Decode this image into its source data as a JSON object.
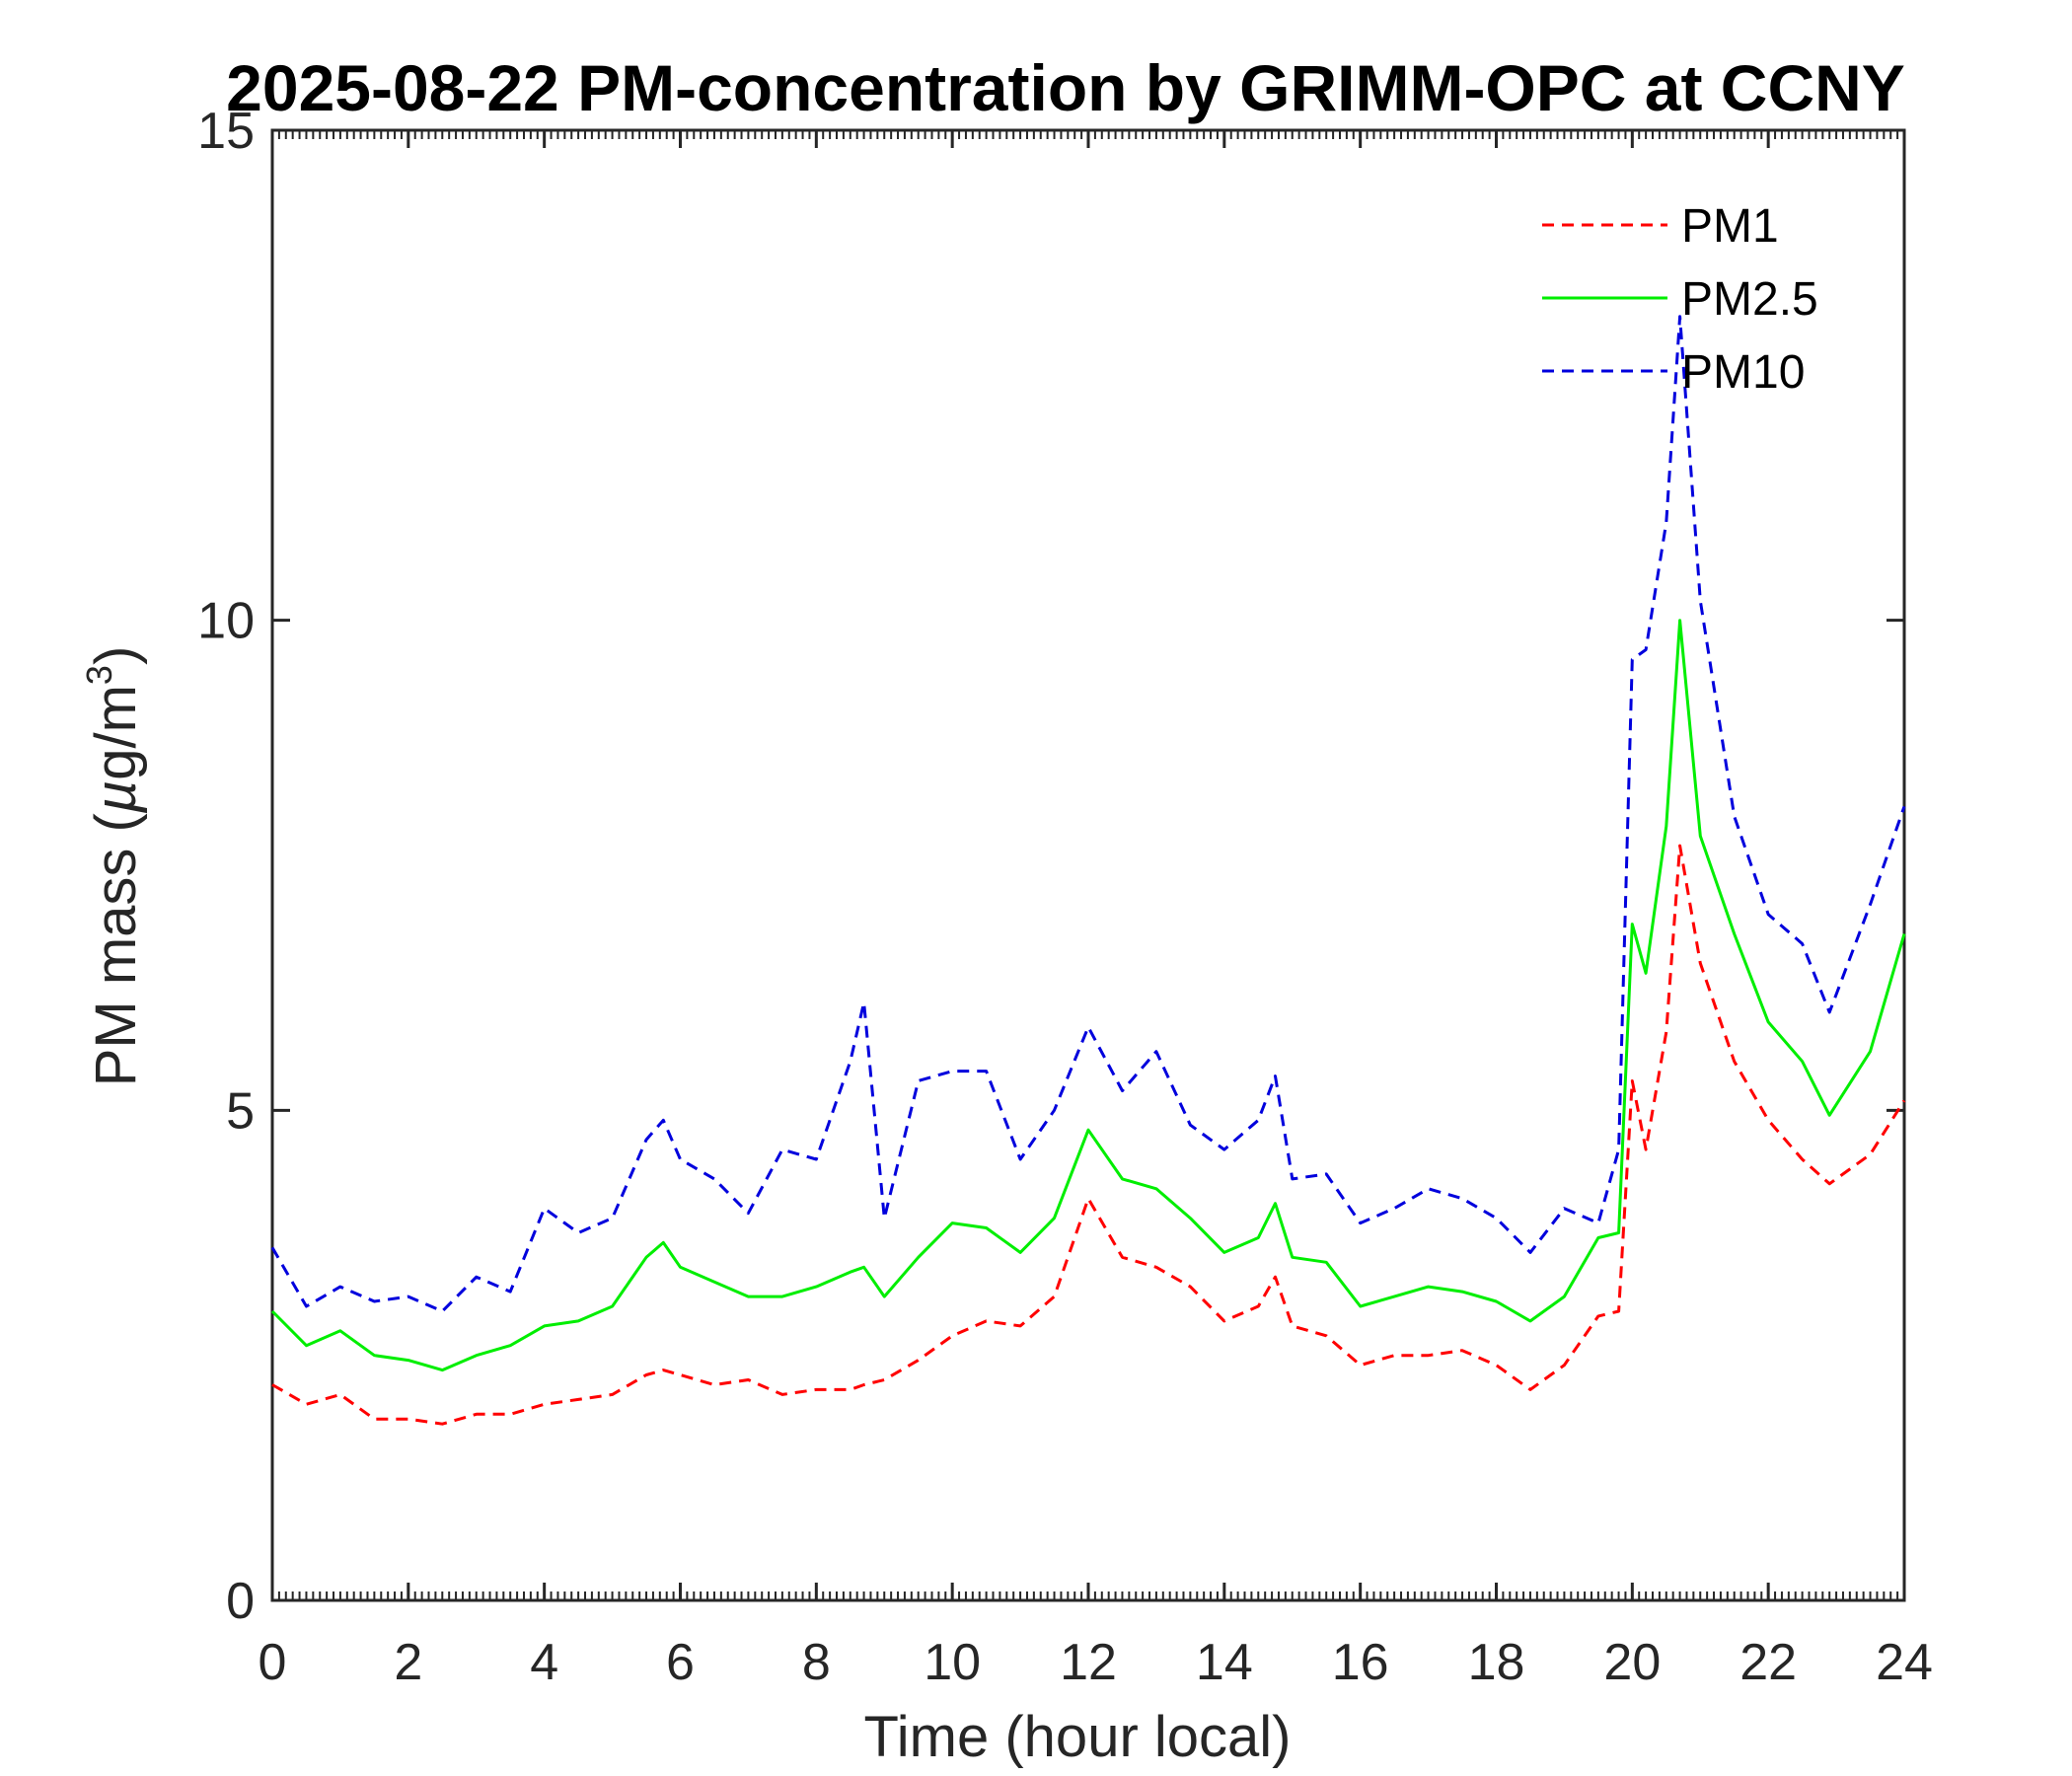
{
  "chart_data": {
    "type": "line",
    "title": "2025-08-22 PM-concentration by GRIMM-OPC at CCNY",
    "xlabel": "Time (hour local)",
    "ylabel": {
      "prefix": "PM mass (",
      "mu": "µ",
      "unit": "g/m",
      "sup": "3",
      "suffix": ")"
    },
    "xlim": [
      0,
      24
    ],
    "ylim": [
      0,
      15
    ],
    "xticks": [
      0,
      2,
      4,
      6,
      8,
      10,
      12,
      14,
      16,
      18,
      20,
      22,
      24
    ],
    "yticks": [
      0,
      5,
      10,
      15
    ],
    "grid": false,
    "legend": "top-right",
    "x": [
      0.0,
      0.5,
      1.0,
      1.5,
      2.0,
      2.5,
      3.0,
      3.5,
      4.0,
      4.5,
      5.0,
      5.5,
      5.75,
      6.0,
      6.5,
      7.0,
      7.5,
      8.0,
      8.5,
      8.7,
      9.0,
      9.5,
      10.0,
      10.5,
      11.0,
      11.5,
      12.0,
      12.5,
      13.0,
      13.5,
      14.0,
      14.5,
      14.75,
      15.0,
      15.5,
      16.0,
      16.5,
      17.0,
      17.5,
      18.0,
      18.5,
      19.0,
      19.5,
      19.8,
      20.0,
      20.2,
      20.5,
      20.7,
      21.0,
      21.5,
      22.0,
      22.5,
      22.9,
      23.5,
      24.0
    ],
    "series": [
      {
        "name": "PM1",
        "color": "#ff0000",
        "dash": "dashed",
        "values": [
          2.2,
          2.0,
          2.1,
          1.85,
          1.85,
          1.8,
          1.9,
          1.9,
          2.0,
          2.05,
          2.1,
          2.3,
          2.35,
          2.3,
          2.2,
          2.25,
          2.1,
          2.15,
          2.15,
          2.2,
          2.25,
          2.45,
          2.7,
          2.85,
          2.8,
          3.1,
          4.1,
          3.5,
          3.4,
          3.2,
          2.85,
          3.0,
          3.3,
          2.8,
          2.7,
          2.4,
          2.5,
          2.5,
          2.55,
          2.4,
          2.15,
          2.4,
          2.9,
          2.95,
          5.3,
          4.6,
          5.8,
          7.7,
          6.5,
          5.5,
          4.9,
          4.5,
          4.25,
          4.55,
          5.1
        ]
      },
      {
        "name": "PM2.5",
        "color": "#00ee00",
        "dash": "solid",
        "values": [
          2.95,
          2.6,
          2.75,
          2.5,
          2.45,
          2.35,
          2.5,
          2.6,
          2.8,
          2.85,
          3.0,
          3.5,
          3.65,
          3.4,
          3.25,
          3.1,
          3.1,
          3.2,
          3.35,
          3.4,
          3.1,
          3.5,
          3.85,
          3.8,
          3.55,
          3.9,
          4.8,
          4.3,
          4.2,
          3.9,
          3.55,
          3.7,
          4.05,
          3.5,
          3.45,
          3.0,
          3.1,
          3.2,
          3.15,
          3.05,
          2.85,
          3.1,
          3.7,
          3.75,
          6.9,
          6.4,
          7.9,
          10.0,
          7.8,
          6.8,
          5.9,
          5.5,
          4.95,
          5.6,
          6.8
        ]
      },
      {
        "name": "PM10",
        "color": "#0000dd",
        "dash": "dashed",
        "values": [
          3.6,
          3.0,
          3.2,
          3.05,
          3.1,
          2.95,
          3.3,
          3.15,
          4.0,
          3.75,
          3.9,
          4.7,
          4.9,
          4.5,
          4.3,
          3.95,
          4.6,
          4.5,
          5.5,
          6.1,
          3.9,
          5.3,
          5.4,
          5.4,
          4.5,
          5.0,
          5.85,
          5.2,
          5.6,
          4.85,
          4.6,
          4.9,
          5.35,
          4.3,
          4.35,
          3.85,
          4.0,
          4.2,
          4.1,
          3.9,
          3.55,
          4.0,
          3.85,
          4.6,
          9.6,
          9.7,
          11.0,
          13.1,
          10.2,
          8.0,
          7.0,
          6.7,
          6.0,
          7.1,
          8.1
        ]
      }
    ]
  }
}
